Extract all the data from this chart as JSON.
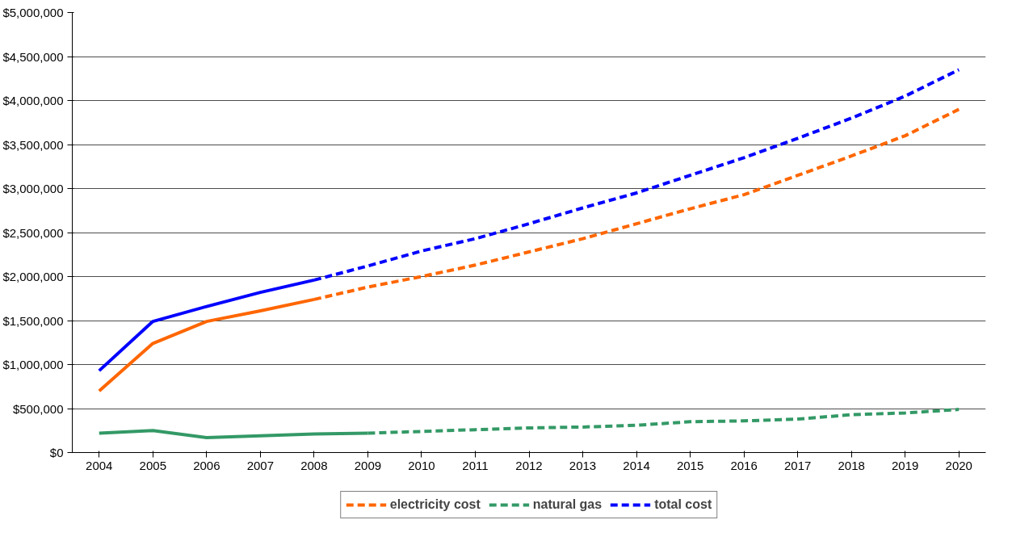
{
  "chart_data": {
    "type": "line",
    "categories": [
      "2004",
      "2005",
      "2006",
      "2007",
      "2008",
      "2009",
      "2010",
      "2011",
      "2012",
      "2013",
      "2014",
      "2015",
      "2016",
      "2017",
      "2018",
      "2019",
      "2020"
    ],
    "ylim": [
      0,
      5000000
    ],
    "yticks": [
      {
        "value": 0,
        "label": "$0"
      },
      {
        "value": 500000,
        "label": "$500,000"
      },
      {
        "value": 1000000,
        "label": "$1,000,000"
      },
      {
        "value": 1500000,
        "label": "$1,500,000"
      },
      {
        "value": 2000000,
        "label": "$2,000,000"
      },
      {
        "value": 2500000,
        "label": "$2,500,000"
      },
      {
        "value": 3000000,
        "label": "$3,000,000"
      },
      {
        "value": 3500000,
        "label": "$3,500,000"
      },
      {
        "value": 4000000,
        "label": "$4,000,000"
      },
      {
        "value": 4500000,
        "label": "$4,500,000"
      },
      {
        "value": 5000000,
        "label": "$5,000,000"
      }
    ],
    "grid": "y",
    "legend": "bottom",
    "line_style": "solid",
    "series": [
      {
        "color": "#ff6600",
        "values": [
          700000,
          1240000,
          1490000,
          1610000,
          1740000,
          null,
          null,
          null,
          null,
          null,
          null,
          null,
          null,
          null,
          null,
          null,
          null
        ]
      },
      {
        "name": "electricity cost",
        "color": "#ff6600",
        "line_style": "dashed",
        "values": [
          null,
          null,
          null,
          null,
          1740000,
          1880000,
          2000000,
          2130000,
          2280000,
          2430000,
          2600000,
          2770000,
          2930000,
          3150000,
          3370000,
          3600000,
          3900000
        ]
      },
      {
        "color": "#339966",
        "values": [
          220000,
          250000,
          170000,
          190000,
          210000,
          220000,
          null,
          null,
          null,
          null,
          null,
          null,
          null,
          null,
          null,
          null,
          null
        ]
      },
      {
        "name": "natural gas",
        "color": "#339966",
        "line_style": "dashed",
        "values": [
          null,
          null,
          null,
          null,
          null,
          220000,
          240000,
          260000,
          280000,
          290000,
          310000,
          350000,
          360000,
          380000,
          430000,
          450000,
          490000
        ]
      },
      {
        "color": "#0000ff",
        "values": [
          930000,
          1490000,
          1660000,
          1820000,
          1960000,
          null,
          null,
          null,
          null,
          null,
          null,
          null,
          null,
          null,
          null,
          null,
          null
        ]
      },
      {
        "name": "total cost",
        "color": "#0000ff",
        "line_style": "dashed",
        "values": [
          null,
          null,
          null,
          null,
          1960000,
          2120000,
          2290000,
          2430000,
          2600000,
          2780000,
          2950000,
          3150000,
          3350000,
          3570000,
          3800000,
          4050000,
          4350000
        ]
      }
    ]
  }
}
